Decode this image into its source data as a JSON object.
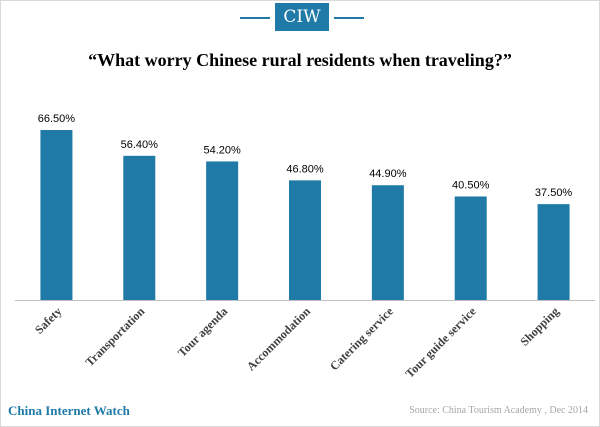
{
  "header": {
    "logo_text": "CIW",
    "brand_color": "#1f7aa7"
  },
  "footer": {
    "brand": "China Internet Watch",
    "source": "Source: China Tourism Academy , Dec 2014"
  },
  "chart_data": {
    "type": "bar",
    "title": "“What worry Chinese rural residents when traveling?”",
    "categories": [
      "Safety",
      "Transportation",
      "Tour agenda",
      "Accommodation",
      "Catering service",
      "Tour guide service",
      "Shopping"
    ],
    "values": [
      66.5,
      56.4,
      54.2,
      46.8,
      44.9,
      40.5,
      37.5
    ],
    "data_labels": [
      "66.50%",
      "56.40%",
      "54.20%",
      "46.80%",
      "44.90%",
      "40.50%",
      "37.50%"
    ],
    "ylim": [
      0,
      70
    ],
    "bar_color": "#1f7aa7",
    "grid": false,
    "legend": "none"
  }
}
